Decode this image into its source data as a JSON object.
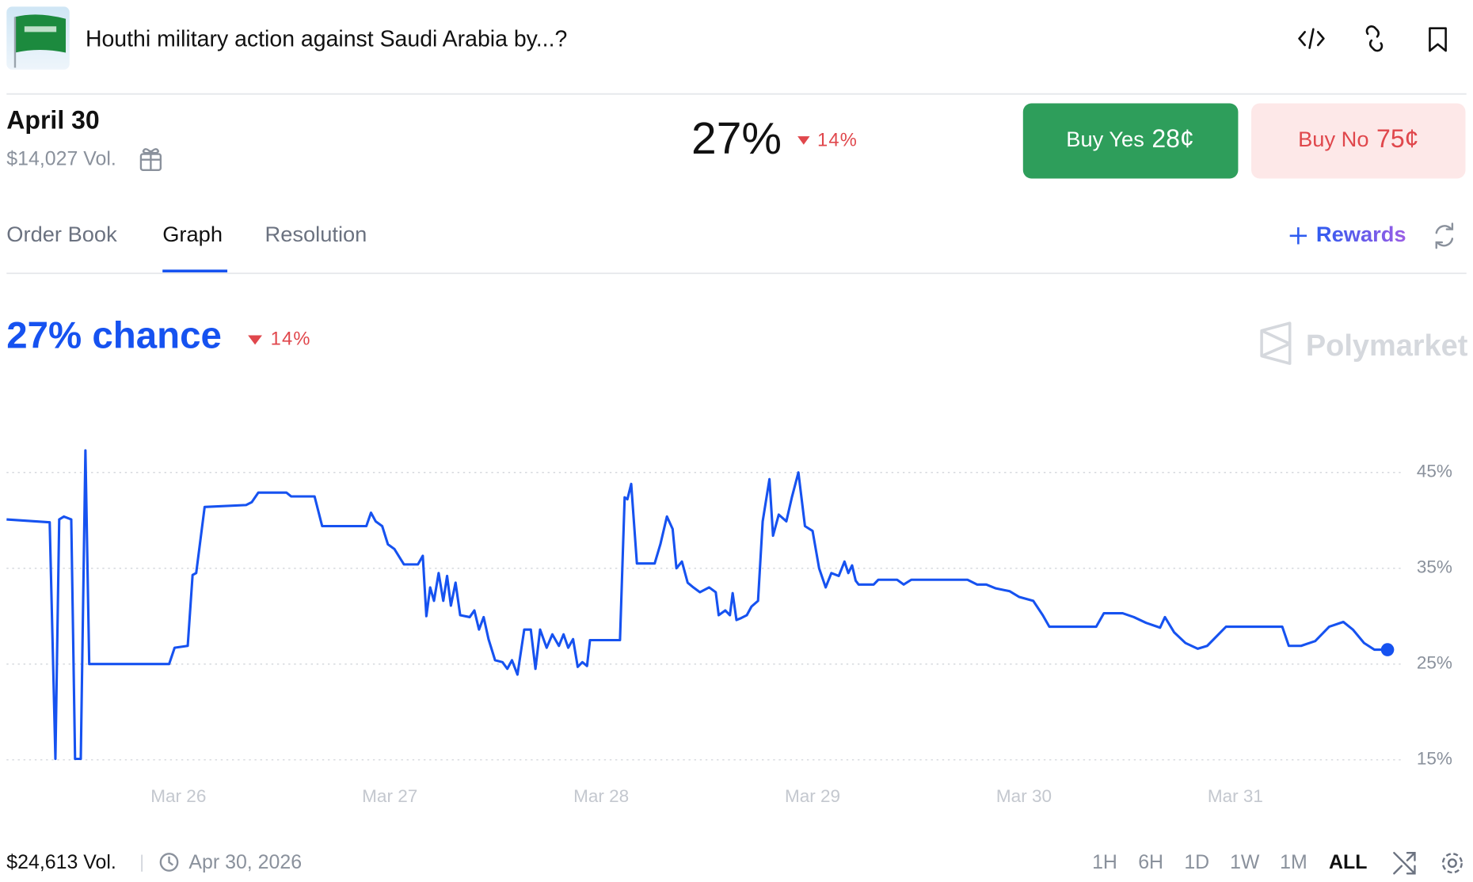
{
  "header": {
    "title": "Houthi military action against Saudi Arabia by...?"
  },
  "market": {
    "outcome": "April 30",
    "volume": "$14,027 Vol.",
    "price": "27%",
    "change": "14%",
    "buy_yes": "Buy Yes",
    "yes_price": "28¢",
    "buy_no": "Buy No",
    "no_price": "75¢"
  },
  "tabs": [
    "Order Book",
    "Graph",
    "Resolution"
  ],
  "rewards": "Rewards",
  "chart_data": {
    "type": "line",
    "title": "27% chance",
    "change": "14%",
    "watermark": "Polymarket",
    "color": "#1652f0",
    "xlim": [
      25.187,
      31.72
    ],
    "ylim": [
      12,
      50
    ],
    "xticks": [
      {
        "value": 26,
        "label": "Mar 26"
      },
      {
        "value": 27,
        "label": "Mar 27"
      },
      {
        "value": 28,
        "label": "Mar 28"
      },
      {
        "value": 29,
        "label": "Mar 29"
      },
      {
        "value": 30,
        "label": "Mar 30"
      },
      {
        "value": 31,
        "label": "Mar 31"
      }
    ],
    "yticks": [
      {
        "value": 15,
        "label": "15%"
      },
      {
        "value": 25,
        "label": "25%"
      },
      {
        "value": 35,
        "label": "35%"
      },
      {
        "value": 45,
        "label": "45%"
      }
    ],
    "grid": true,
    "x": [
      25.187,
      25.391,
      25.418,
      25.436,
      25.458,
      25.493,
      25.511,
      25.538,
      25.56,
      25.578,
      25.956,
      25.982,
      26.044,
      26.067,
      26.084,
      26.124,
      26.32,
      26.347,
      26.378,
      26.511,
      26.533,
      26.644,
      26.68,
      26.889,
      26.911,
      26.933,
      26.964,
      26.991,
      27.022,
      27.067,
      27.133,
      27.156,
      27.173,
      27.191,
      27.209,
      27.231,
      27.253,
      27.271,
      27.289,
      27.311,
      27.333,
      27.378,
      27.4,
      27.422,
      27.444,
      27.467,
      27.498,
      27.533,
      27.556,
      27.578,
      27.604,
      27.636,
      27.667,
      27.689,
      27.711,
      27.742,
      27.769,
      27.8,
      27.822,
      27.844,
      27.867,
      27.889,
      27.911,
      27.933,
      27.947,
      28.089,
      28.111,
      28.124,
      28.142,
      28.169,
      28.253,
      28.28,
      28.311,
      28.338,
      28.356,
      28.382,
      28.409,
      28.436,
      28.467,
      28.511,
      28.542,
      28.556,
      28.587,
      28.609,
      28.622,
      28.64,
      28.662,
      28.689,
      28.711,
      28.742,
      28.764,
      28.796,
      28.813,
      28.84,
      28.876,
      28.902,
      28.933,
      28.964,
      29.0,
      29.031,
      29.062,
      29.089,
      29.124,
      29.151,
      29.169,
      29.187,
      29.204,
      29.218,
      29.289,
      29.311,
      29.4,
      29.431,
      29.467,
      29.733,
      29.778,
      29.822,
      29.867,
      29.933,
      29.978,
      30.044,
      30.089,
      30.12,
      30.342,
      30.378,
      30.467,
      30.52,
      30.578,
      30.644,
      30.667,
      30.711,
      30.764,
      30.822,
      30.867,
      30.956,
      31.222,
      31.253,
      31.311,
      31.378,
      31.444,
      31.511,
      31.556,
      31.609,
      31.658,
      31.72
    ],
    "values": [
      40.1,
      39.8,
      15.1,
      40.1,
      40.4,
      40.1,
      15.1,
      15.1,
      47.3,
      25.0,
      25.0,
      26.7,
      26.9,
      34.3,
      34.5,
      41.4,
      41.6,
      41.9,
      42.9,
      42.9,
      42.5,
      42.5,
      39.4,
      39.4,
      40.8,
      39.9,
      39.4,
      37.5,
      37.0,
      35.4,
      35.4,
      36.3,
      30.0,
      33.0,
      31.6,
      34.5,
      31.6,
      34.2,
      31.1,
      33.5,
      30.1,
      29.9,
      30.6,
      28.6,
      29.9,
      27.6,
      25.4,
      25.2,
      24.5,
      25.4,
      23.9,
      28.6,
      28.6,
      24.5,
      28.6,
      26.7,
      28.1,
      26.9,
      28.1,
      26.7,
      27.6,
      24.7,
      25.2,
      24.8,
      27.5,
      27.5,
      42.4,
      42.2,
      43.8,
      35.5,
      35.5,
      37.5,
      40.4,
      39.1,
      35.0,
      35.7,
      33.5,
      33.0,
      32.5,
      33.0,
      32.5,
      30.1,
      30.6,
      30.1,
      32.4,
      29.6,
      29.8,
      30.1,
      31.0,
      31.6,
      39.9,
      44.3,
      38.4,
      40.6,
      39.9,
      42.4,
      45.0,
      39.4,
      38.9,
      35.0,
      33.0,
      34.5,
      34.2,
      35.7,
      34.5,
      35.3,
      33.7,
      33.3,
      33.3,
      33.8,
      33.8,
      33.3,
      33.8,
      33.8,
      33.3,
      33.3,
      32.9,
      32.6,
      32.0,
      31.6,
      30.1,
      28.9,
      28.9,
      30.3,
      30.3,
      29.9,
      29.3,
      28.8,
      29.9,
      28.3,
      27.2,
      26.6,
      26.9,
      28.9,
      28.9,
      26.9,
      26.9,
      27.4,
      28.9,
      29.4,
      28.6,
      27.2,
      26.5,
      26.5
    ]
  },
  "footer": {
    "volume": "$24,613 Vol.",
    "end_date": "Apr 30, 2026",
    "ranges": [
      "1H",
      "6H",
      "1D",
      "1W",
      "1M",
      "ALL"
    ]
  }
}
